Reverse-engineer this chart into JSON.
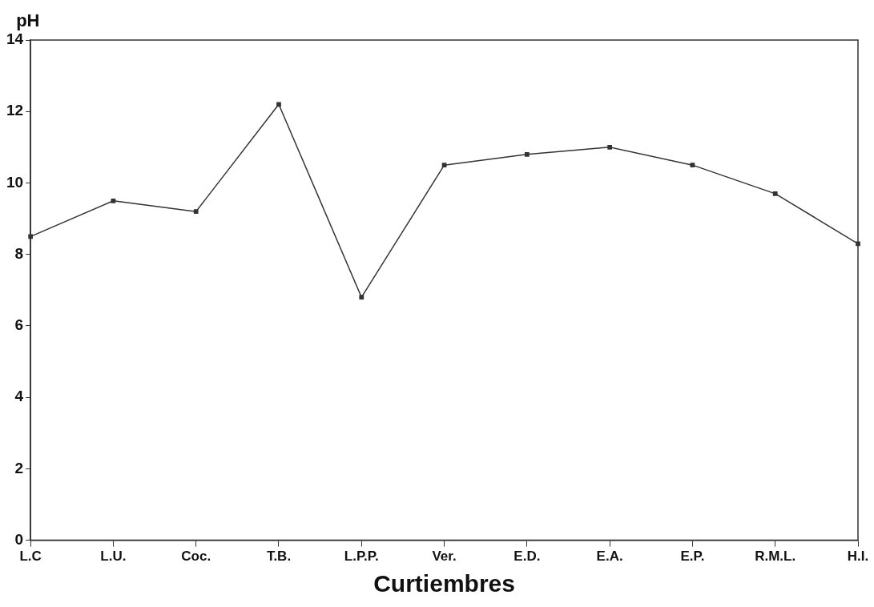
{
  "chart_data": {
    "type": "line",
    "xlabel": "Curtiembres",
    "ylabel": "pH",
    "categories": [
      "L.C",
      "L.U.",
      "Coc.",
      "T.B.",
      "L.P.P.",
      "Ver.",
      "E.D.",
      "E.A.",
      "E.P.",
      "R.M.L.",
      "H.I."
    ],
    "series": [
      {
        "color": "#333333",
        "values": [
          8.5,
          9.5,
          9.2,
          12.2,
          6.8,
          10.5,
          10.8,
          11.0,
          10.5,
          9.7,
          8.3
        ]
      }
    ],
    "ylim": [
      0,
      14
    ],
    "yticks": [
      0,
      2,
      4,
      6,
      8,
      10,
      12,
      14
    ],
    "grid": false,
    "legend": false,
    "marker": "square",
    "line_style": "solid"
  }
}
